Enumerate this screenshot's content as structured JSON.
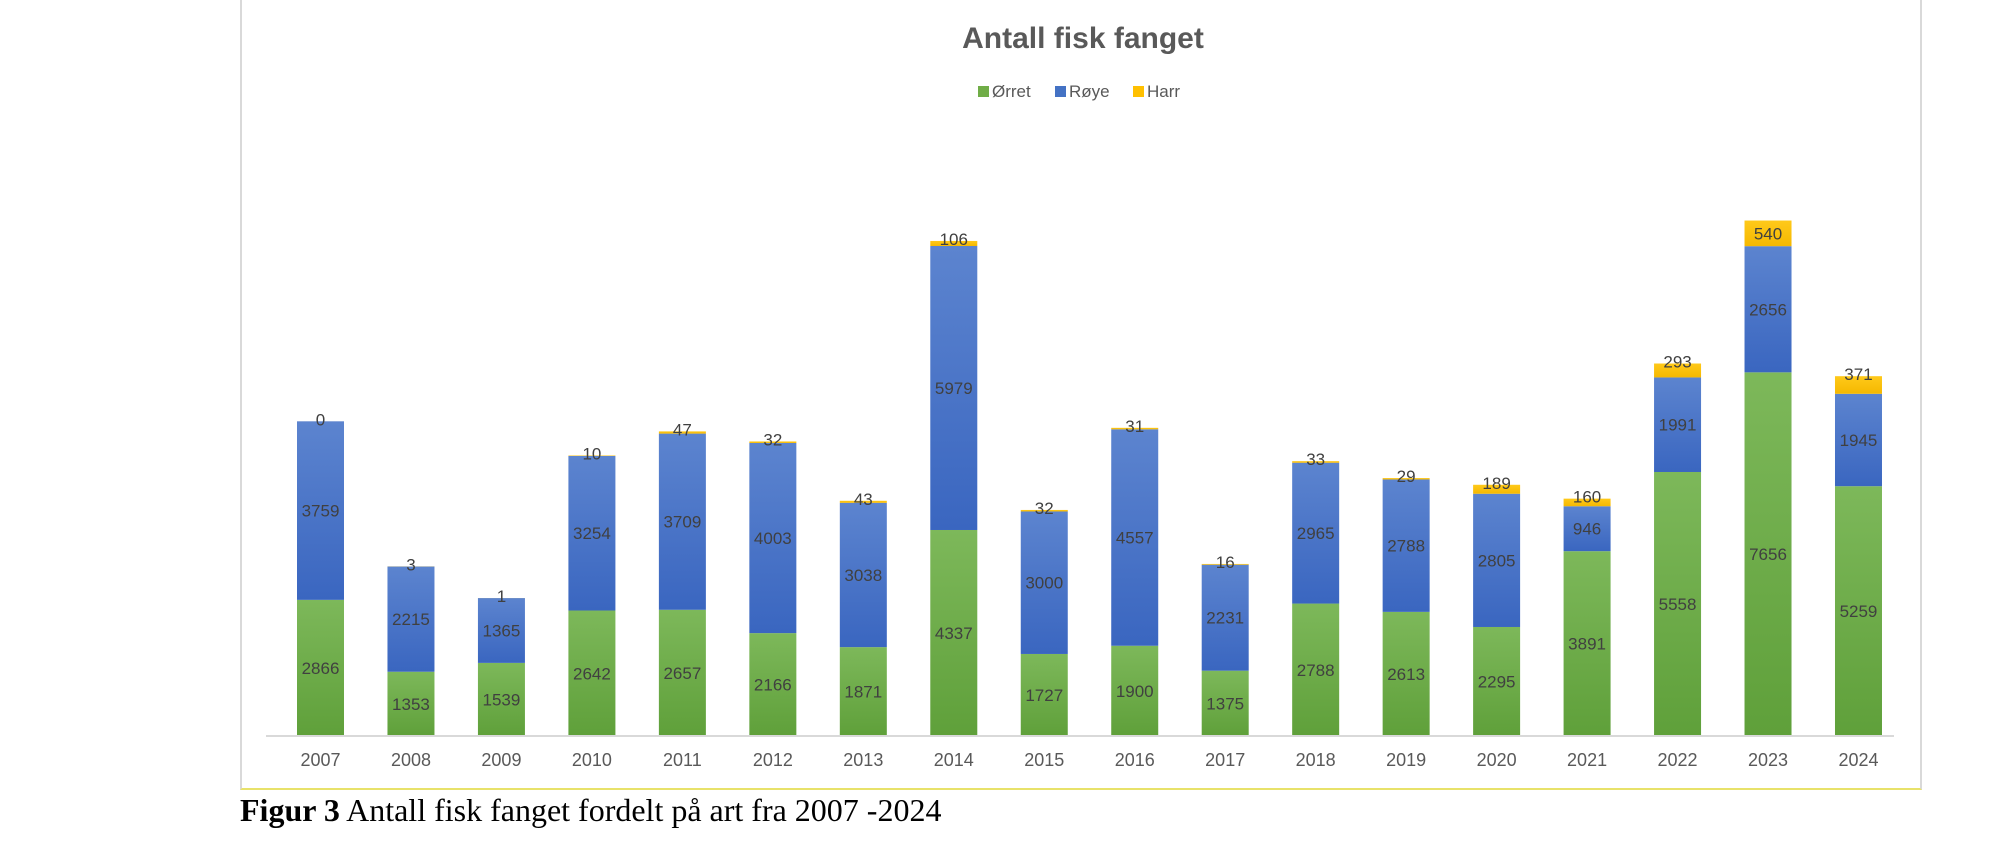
{
  "chart_data": {
    "type": "bar",
    "stacked": true,
    "title": "Antall fisk fanget",
    "xlabel": "",
    "ylabel": "",
    "categories": [
      "2007",
      "2008",
      "2009",
      "2010",
      "2011",
      "2012",
      "2013",
      "2014",
      "2015",
      "2016",
      "2017",
      "2018",
      "2019",
      "2020",
      "2021",
      "2022",
      "2023",
      "2024"
    ],
    "series": [
      {
        "name": "Ørret",
        "color": "#70ad47",
        "values": [
          2866,
          1353,
          1539,
          2642,
          2657,
          2166,
          1871,
          4337,
          1727,
          1900,
          1375,
          2788,
          2613,
          2295,
          3891,
          5558,
          7656,
          5259
        ]
      },
      {
        "name": "Røye",
        "color": "#4472c4",
        "values": [
          3759,
          2215,
          1365,
          3254,
          3709,
          4003,
          3038,
          5979,
          3000,
          4557,
          2231,
          2965,
          2788,
          2805,
          946,
          1991,
          2656,
          1945
        ]
      },
      {
        "name": "Harr",
        "color": "#ffc000",
        "values": [
          0,
          3,
          1,
          10,
          47,
          32,
          43,
          106,
          32,
          31,
          16,
          33,
          29,
          189,
          160,
          293,
          540,
          371
        ]
      }
    ],
    "legend_position": "top",
    "grid": false
  },
  "caption": {
    "label": "Figur 3",
    "text": " Antall fisk fanget fordelt på art fra 2007 -2024"
  }
}
